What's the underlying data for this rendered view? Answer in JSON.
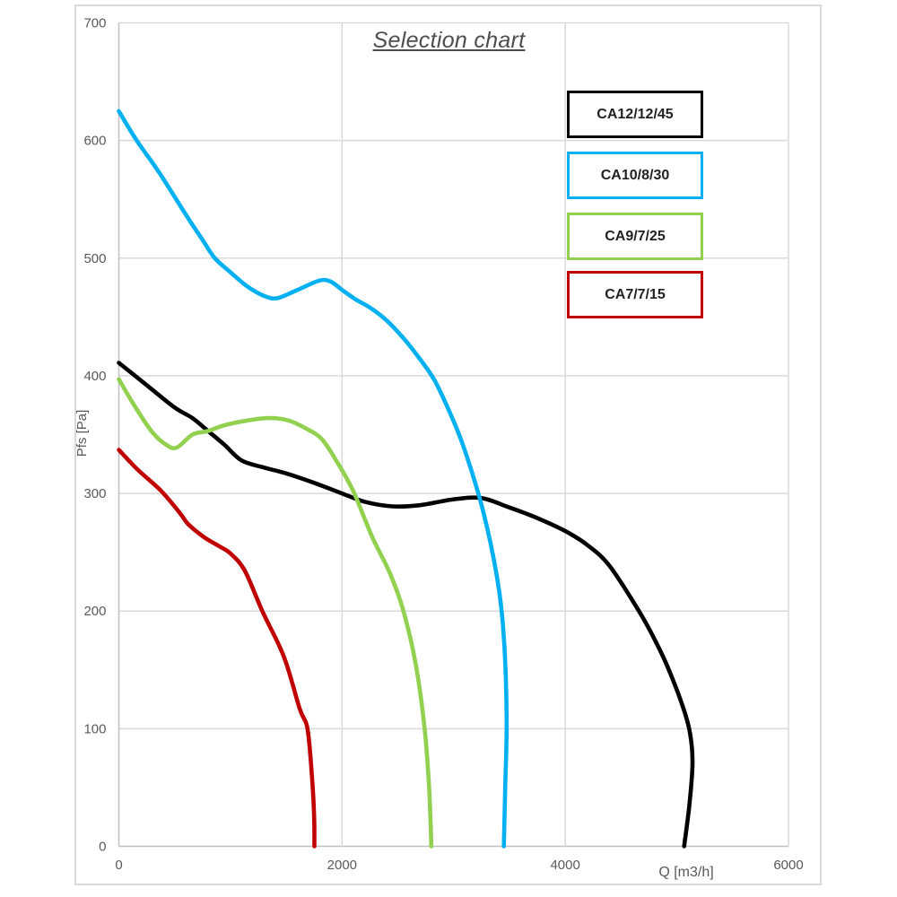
{
  "chart_data": {
    "type": "line",
    "title": "Selection chart",
    "xlabel": "Q [m3/h]",
    "ylabel": "Pfs [Pa]",
    "xlim": [
      0,
      6000
    ],
    "ylim": [
      0,
      700
    ],
    "grid": true,
    "legend_position": "top-right",
    "x_ticks": [
      {
        "value": 0,
        "label": "0"
      },
      {
        "value": 2000,
        "label": "2000"
      },
      {
        "value": 4000,
        "label": "4000"
      },
      {
        "value": 6000,
        "label": "6000"
      }
    ],
    "y_ticks": [
      {
        "value": 0,
        "label": "0"
      },
      {
        "value": 100,
        "label": "100"
      },
      {
        "value": 200,
        "label": "200"
      },
      {
        "value": 300,
        "label": "300"
      },
      {
        "value": 400,
        "label": "400"
      },
      {
        "value": 500,
        "label": "500"
      },
      {
        "value": 600,
        "label": "600"
      },
      {
        "value": 700,
        "label": "700"
      }
    ],
    "series": [
      {
        "name": "CA12/12/45",
        "color": "#000000",
        "points": [
          [
            0,
            411
          ],
          [
            250,
            392
          ],
          [
            500,
            373
          ],
          [
            660,
            364
          ],
          [
            800,
            353
          ],
          [
            950,
            341
          ],
          [
            1100,
            328
          ],
          [
            1300,
            322
          ],
          [
            1500,
            317
          ],
          [
            1750,
            309
          ],
          [
            2000,
            300
          ],
          [
            2200,
            293
          ],
          [
            2450,
            289
          ],
          [
            2700,
            290
          ],
          [
            3000,
            295
          ],
          [
            3250,
            296
          ],
          [
            3500,
            288
          ],
          [
            3750,
            279
          ],
          [
            4000,
            268
          ],
          [
            4200,
            256
          ],
          [
            4400,
            238
          ],
          [
            4660,
            200
          ],
          [
            4800,
            176
          ],
          [
            4920,
            152
          ],
          [
            5060,
            117
          ],
          [
            5120,
            95
          ],
          [
            5140,
            70
          ],
          [
            5112,
            35
          ],
          [
            5065,
            0
          ]
        ]
      },
      {
        "name": "CA10/8/30",
        "color": "#00B0F0",
        "points": [
          [
            0,
            625
          ],
          [
            160,
            600
          ],
          [
            360,
            573
          ],
          [
            600,
            537
          ],
          [
            760,
            514
          ],
          [
            860,
            500
          ],
          [
            1000,
            488
          ],
          [
            1150,
            476
          ],
          [
            1300,
            468
          ],
          [
            1420,
            466
          ],
          [
            1600,
            473
          ],
          [
            1800,
            481
          ],
          [
            1900,
            480
          ],
          [
            2000,
            473
          ],
          [
            2120,
            465
          ],
          [
            2250,
            458
          ],
          [
            2400,
            447
          ],
          [
            2550,
            432
          ],
          [
            2700,
            414
          ],
          [
            2830,
            396
          ],
          [
            2960,
            370
          ],
          [
            3080,
            342
          ],
          [
            3230,
            297
          ],
          [
            3330,
            258
          ],
          [
            3400,
            222
          ],
          [
            3440,
            190
          ],
          [
            3465,
            150
          ],
          [
            3475,
            100
          ],
          [
            3462,
            50
          ],
          [
            3450,
            0
          ]
        ]
      },
      {
        "name": "CA9/7/25",
        "color": "#92D050",
        "points": [
          [
            0,
            397
          ],
          [
            150,
            373
          ],
          [
            300,
            352
          ],
          [
            430,
            341
          ],
          [
            520,
            339
          ],
          [
            660,
            350
          ],
          [
            795,
            353
          ],
          [
            950,
            358
          ],
          [
            1150,
            362
          ],
          [
            1350,
            364
          ],
          [
            1520,
            362
          ],
          [
            1680,
            355
          ],
          [
            1820,
            346
          ],
          [
            1960,
            326
          ],
          [
            2100,
            302
          ],
          [
            2270,
            263
          ],
          [
            2430,
            232
          ],
          [
            2550,
            200
          ],
          [
            2660,
            155
          ],
          [
            2740,
            100
          ],
          [
            2780,
            50
          ],
          [
            2800,
            0
          ]
        ]
      },
      {
        "name": "CA7/7/15",
        "color": "#C00000",
        "points": [
          [
            0,
            337
          ],
          [
            160,
            321
          ],
          [
            313,
            308
          ],
          [
            400,
            300
          ],
          [
            550,
            283
          ],
          [
            620,
            274
          ],
          [
            760,
            263
          ],
          [
            900,
            255
          ],
          [
            1000,
            249
          ],
          [
            1130,
            234
          ],
          [
            1290,
            199
          ],
          [
            1480,
            161
          ],
          [
            1620,
            117
          ],
          [
            1690,
            100
          ],
          [
            1730,
            60
          ],
          [
            1750,
            25
          ],
          [
            1752,
            0
          ]
        ]
      }
    ]
  },
  "legend": {
    "items": [
      {
        "label": "CA12/12/45"
      },
      {
        "label": "CA10/8/30"
      },
      {
        "label": "CA9/7/25"
      },
      {
        "label": "CA7/7/15"
      }
    ]
  },
  "colors": {
    "grid": "#d9d9d9",
    "axis": "#c0c0c0",
    "frame": "#d9d9d9",
    "tick_text": "#595959",
    "title_text": "#4d4d4d",
    "legend_text": "#222222"
  }
}
